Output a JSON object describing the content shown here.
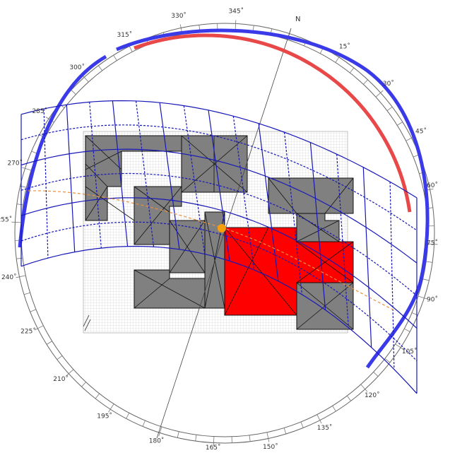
{
  "compass": {
    "north_label": "N",
    "degree_labels": [
      {
        "text": "15˚",
        "angle": 15
      },
      {
        "text": "30˚",
        "angle": 30
      },
      {
        "text": "45˚",
        "angle": 45
      },
      {
        "text": "60˚",
        "angle": 60
      },
      {
        "text": "75˚",
        "angle": 75
      },
      {
        "text": "90˚",
        "angle": 90
      },
      {
        "text": "105˚",
        "angle": 105
      },
      {
        "text": "120˚",
        "angle": 120
      },
      {
        "text": "135˚",
        "angle": 135
      },
      {
        "text": "150˚",
        "angle": 150
      },
      {
        "text": "165˚",
        "angle": 165
      },
      {
        "text": "180˚",
        "angle": 180
      },
      {
        "text": "195˚",
        "angle": 195
      },
      {
        "text": "210˚",
        "angle": 210
      },
      {
        "text": "225˚",
        "angle": 225
      },
      {
        "text": "240˚",
        "angle": 240
      },
      {
        "text": "255˚",
        "angle": 255
      },
      {
        "text": "270˚",
        "angle": 270
      },
      {
        "text": "285˚",
        "angle": 285
      },
      {
        "text": "300˚",
        "angle": 300
      },
      {
        "text": "315˚",
        "angle": 315
      },
      {
        "text": "330˚",
        "angle": 330
      },
      {
        "text": "345˚",
        "angle": 345
      }
    ]
  },
  "colors": {
    "ring": "#888888",
    "sunpath": "#1010b0",
    "selected_roof": "#ff0000",
    "roof": "#808080",
    "grid": "#bbbbbb",
    "sun": "#f5a00a",
    "arc_red": "#e84848",
    "arc_blue": "#3a3ae8",
    "sun_trace": "#e89040"
  }
}
